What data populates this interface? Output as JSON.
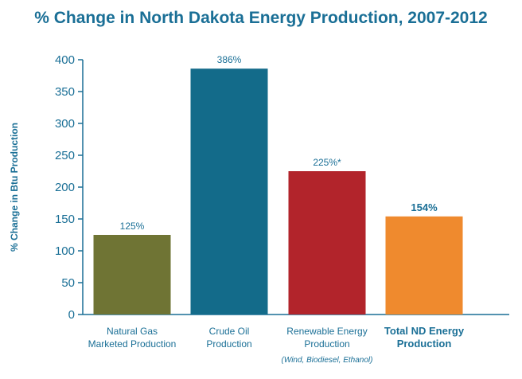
{
  "chart_data": {
    "type": "bar",
    "title": "% Change in North Dakota Energy Production, 2007-2012",
    "xlabel": "",
    "ylabel": "% Change in Btu Production",
    "ylim": [
      0,
      400
    ],
    "yticks": [
      0,
      50,
      100,
      150,
      200,
      250,
      300,
      350,
      400
    ],
    "grid": false,
    "categories": [
      "Natural Gas Marketed Production",
      "Crude Oil Production",
      "Renewable Energy Production",
      "Total ND Energy Production"
    ],
    "category_lines": [
      [
        "Natural Gas",
        "Marketed Production"
      ],
      [
        "Crude Oil",
        "Production"
      ],
      [
        "Renewable Energy",
        "Production"
      ],
      [
        "Total ND Energy",
        "Production"
      ]
    ],
    "category_notes": [
      "",
      "",
      "(Wind, Biodiesel, Ethanol)",
      ""
    ],
    "values": [
      125,
      386,
      225,
      154
    ],
    "data_labels": [
      "125%",
      "386%",
      "225%*",
      "154%"
    ],
    "colors": [
      "#6f7434",
      "#136b8a",
      "#b2242b",
      "#ef8a2e"
    ],
    "text_color": "#1a6f96",
    "axis_color": "#1a6f96"
  }
}
